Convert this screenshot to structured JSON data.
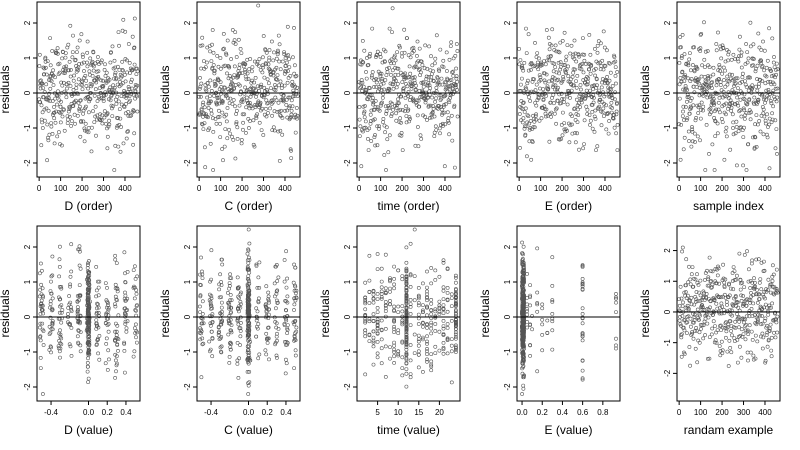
{
  "figure": {
    "point_color": "#555555",
    "frame_color": "#000000"
  },
  "chart_data": [
    {
      "type": "scatter",
      "xlabel": "D (order)",
      "ylabel": "residuals",
      "xlim": [
        -10,
        470
      ],
      "ylim": [
        -2.4,
        2.6
      ],
      "xticks": [
        0,
        100,
        200,
        300,
        400
      ],
      "yticks": [
        -2,
        -1,
        0,
        1,
        2
      ],
      "refline_y": 0,
      "x_kind": "index",
      "x": [],
      "y": []
    },
    {
      "type": "scatter",
      "xlabel": "C (order)",
      "ylabel": "residuals",
      "xlim": [
        -10,
        470
      ],
      "ylim": [
        -2.4,
        2.6
      ],
      "xticks": [
        0,
        100,
        200,
        300,
        400
      ],
      "yticks": [
        -2,
        -1,
        0,
        1,
        2
      ],
      "refline_y": 0,
      "x_kind": "index",
      "x": [],
      "y": []
    },
    {
      "type": "scatter",
      "xlabel": "time (order)",
      "ylabel": "residuals",
      "xlim": [
        -10,
        470
      ],
      "ylim": [
        -2.4,
        2.6
      ],
      "xticks": [
        0,
        100,
        200,
        300,
        400
      ],
      "yticks": [
        -2,
        -1,
        0,
        1,
        2
      ],
      "refline_y": 0,
      "x_kind": "index",
      "x": [],
      "y": []
    },
    {
      "type": "scatter",
      "xlabel": "E (order)",
      "ylabel": "residuals",
      "xlim": [
        -10,
        470
      ],
      "ylim": [
        -2.4,
        2.6
      ],
      "xticks": [
        0,
        100,
        200,
        300,
        400
      ],
      "yticks": [
        -2,
        -1,
        0,
        1,
        2
      ],
      "refline_y": 0,
      "x_kind": "index",
      "x": [],
      "y": []
    },
    {
      "type": "scatter",
      "xlabel": "sample index",
      "ylabel": "residuals",
      "xlim": [
        -10,
        470
      ],
      "ylim": [
        -2.4,
        2.6
      ],
      "xticks": [
        0,
        100,
        200,
        300,
        400
      ],
      "yticks": [
        -2,
        -1,
        0,
        1,
        2
      ],
      "refline_y": 0,
      "x_kind": "index",
      "x": [],
      "y": []
    },
    {
      "type": "scatter",
      "xlabel": "D (value)",
      "ylabel": "residuals",
      "xlim": [
        -0.55,
        0.55
      ],
      "ylim": [
        -2.4,
        2.6
      ],
      "xticks": [
        -0.4,
        0.0,
        0.2,
        0.4
      ],
      "xticklabels": [
        "-0.4",
        "0.0",
        "0.2",
        "0.4"
      ],
      "yticks": [
        -2,
        -1,
        0,
        1,
        2
      ],
      "refline_y": 0,
      "x_kind": "value",
      "x": [],
      "y": []
    },
    {
      "type": "scatter",
      "xlabel": "C (value)",
      "ylabel": "residuals",
      "xlim": [
        -0.55,
        0.55
      ],
      "ylim": [
        -2.4,
        2.6
      ],
      "xticks": [
        -0.4,
        0.0,
        0.2,
        0.4
      ],
      "xticklabels": [
        "-0.4",
        "0.0",
        "0.2",
        "0.4"
      ],
      "yticks": [
        -2,
        -1,
        0,
        1,
        2
      ],
      "refline_y": 0,
      "x_kind": "value",
      "x": [],
      "y": []
    },
    {
      "type": "scatter",
      "xlabel": "time (value)",
      "ylabel": "residuals",
      "xlim": [
        0,
        25
      ],
      "ylim": [
        -2.4,
        2.6
      ],
      "xticks": [
        5,
        10,
        15,
        20
      ],
      "xticklabels": [
        "5",
        "10",
        "15",
        "20"
      ],
      "yticks": [
        -2,
        -1,
        0,
        1,
        2
      ],
      "refline_y": 0,
      "x_kind": "value",
      "x": [],
      "y": []
    },
    {
      "type": "scatter",
      "xlabel": "E (value)",
      "ylabel": "residuals",
      "xlim": [
        -0.05,
        0.97
      ],
      "ylim": [
        -2.4,
        2.6
      ],
      "xticks": [
        0.0,
        0.2,
        0.4,
        0.6,
        0.8
      ],
      "xticklabels": [
        "0.0",
        "0.2",
        "0.4",
        "0.6",
        "0.8"
      ],
      "yticks": [
        -2,
        -1,
        0,
        1,
        2
      ],
      "refline_y": 0,
      "x_kind": "value",
      "x": [],
      "y": []
    },
    {
      "type": "scatter",
      "xlabel": "randam example",
      "ylabel": "residuals",
      "xlim": [
        -10,
        470
      ],
      "ylim": [
        -2.9,
        2.8
      ],
      "xticks": [
        0,
        100,
        200,
        300,
        400
      ],
      "yticks": [
        -2,
        -1,
        0,
        1,
        2
      ],
      "refline_y": 0,
      "x_kind": "index",
      "x": [],
      "y": []
    }
  ]
}
